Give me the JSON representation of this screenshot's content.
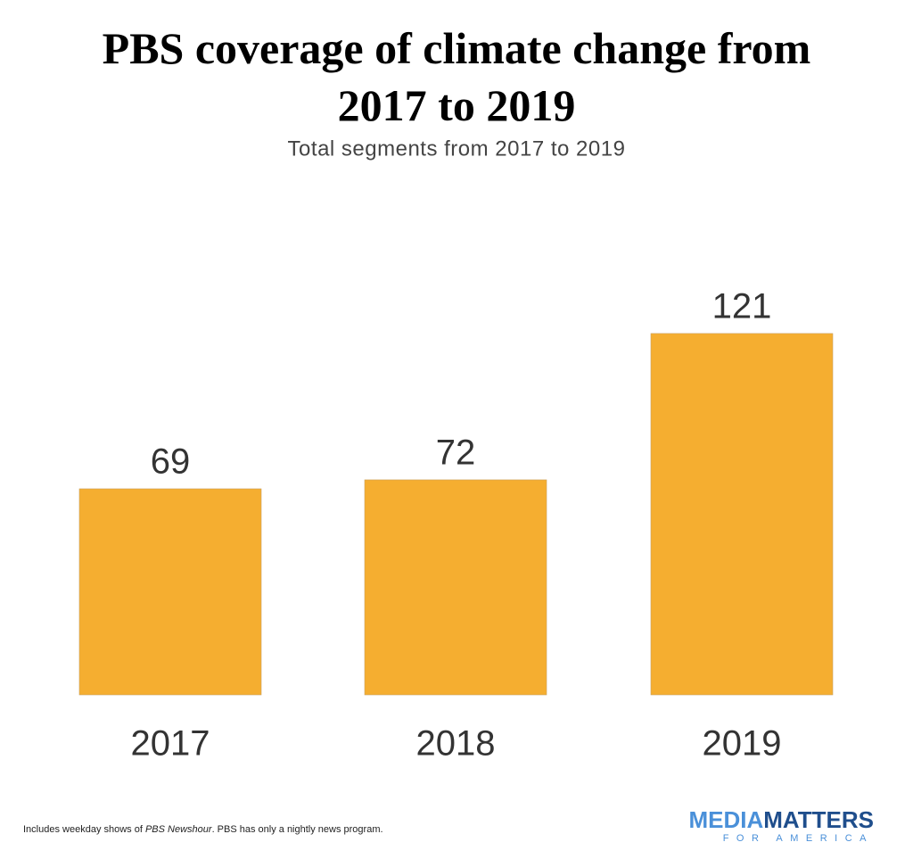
{
  "chart_data": {
    "type": "bar",
    "title": "PBS coverage of climate change from 2017 to 2019",
    "subtitle": "Total segments from 2017 to 2019",
    "categories": [
      "2017",
      "2018",
      "2019"
    ],
    "values": [
      69,
      72,
      121
    ],
    "color": "#f5ae30",
    "note": [
      "Includes weekday shows of ",
      "PBS Newshour",
      ". PBS has only a nightly news program."
    ],
    "logo": [
      "MEDIA",
      "MATTERS",
      "FOR AMERICA"
    ]
  }
}
